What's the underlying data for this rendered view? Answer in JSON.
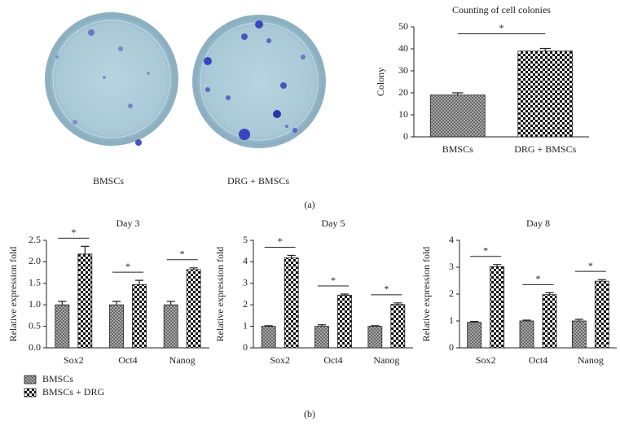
{
  "figure": {
    "plate_labels": [
      "BMSCs",
      "DRG + BMSCs"
    ],
    "panel_labels": [
      "(a)",
      "(b)"
    ]
  },
  "chart_data": [
    {
      "type": "bar",
      "title": "Counting of cell colonies",
      "ylabel": "Colony",
      "categories": [
        "BMSCs",
        "DRG + BMSCs"
      ],
      "values": [
        19,
        39
      ],
      "errors": [
        1,
        1.2
      ],
      "colors": [
        "#555555",
        "#111111"
      ],
      "ylim": [
        0,
        50
      ],
      "yticks": [
        0,
        10,
        20,
        30,
        40,
        50
      ],
      "annotations": [
        "*"
      ]
    },
    {
      "type": "grouped-bar",
      "title": "Day 3",
      "ylabel": "Relative expression fold",
      "categories": [
        "Sox2",
        "Oct4",
        "Nanog"
      ],
      "series": [
        {
          "name": "BMSCs",
          "color": "#555555",
          "values": [
            1.0,
            1.0,
            1.0
          ],
          "errors": [
            0.08,
            0.08,
            0.08
          ]
        },
        {
          "name": "BMSCs + DRG",
          "color": "#111111",
          "values": [
            2.18,
            1.47,
            1.82
          ],
          "errors": [
            0.18,
            0.1,
            0.04
          ]
        }
      ],
      "ylim": [
        0,
        2.5
      ],
      "yticks": [
        {
          "value": 0,
          "label": "0.0"
        },
        0.5,
        {
          "value": 1,
          "label": "1.0"
        },
        1.5,
        {
          "value": 2,
          "label": "2.0"
        },
        2.5
      ],
      "annotations": [
        "*",
        "*",
        "*"
      ]
    },
    {
      "type": "grouped-bar",
      "title": "Day 5",
      "ylabel": "Relative expression fold",
      "categories": [
        "Sox2",
        "Oct4",
        "Nanog"
      ],
      "series": [
        {
          "name": "BMSCs",
          "color": "#555555",
          "values": [
            1.0,
            1.0,
            1.0
          ],
          "errors": [
            0.03,
            0.07,
            0.03
          ]
        },
        {
          "name": "BMSCs + DRG",
          "color": "#111111",
          "values": [
            4.18,
            2.45,
            2.02
          ],
          "errors": [
            0.12,
            0.05,
            0.07
          ]
        }
      ],
      "ylim": [
        0,
        5
      ],
      "yticks": [
        0,
        1,
        2,
        3,
        4,
        5
      ],
      "annotations": [
        "*",
        "*",
        "*"
      ]
    },
    {
      "type": "grouped-bar",
      "title": "Day 8",
      "ylabel": "Relative expression fold",
      "categories": [
        "Sox2",
        "Oct4",
        "Nanog"
      ],
      "series": [
        {
          "name": "BMSCs",
          "color": "#555555",
          "values": [
            0.95,
            1.0,
            1.0
          ],
          "errors": [
            0.03,
            0.03,
            0.06
          ]
        },
        {
          "name": "BMSCs + DRG",
          "color": "#111111",
          "values": [
            3.02,
            1.98,
            2.48
          ],
          "errors": [
            0.08,
            0.07,
            0.06
          ]
        }
      ],
      "ylim": [
        0,
        4
      ],
      "yticks": [
        0,
        1,
        2,
        3,
        4
      ],
      "annotations": [
        "*",
        "*",
        "*"
      ]
    }
  ]
}
